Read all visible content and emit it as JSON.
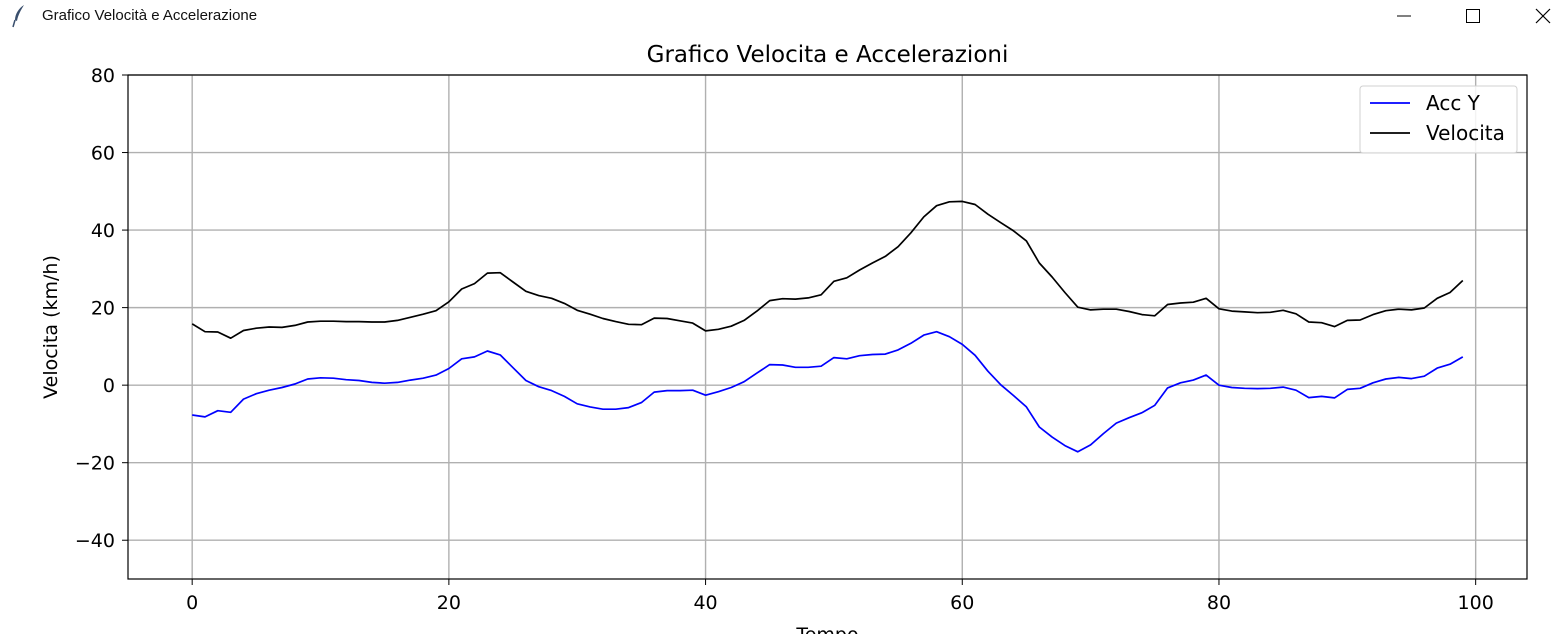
{
  "window": {
    "title": "Grafico Velocità e Accelerazione",
    "icon": "feather-icon",
    "controls": [
      "minimize-icon",
      "maximize-icon",
      "close-icon"
    ]
  },
  "chart_data": {
    "type": "line",
    "title": "Grafico Velocita e Accelerazioni",
    "xlabel": "Tempo",
    "ylabel": "Velocita (km/h)",
    "xlim": [
      -5,
      104
    ],
    "ylim": [
      -50,
      80
    ],
    "xticks": [
      0,
      20,
      40,
      60,
      80,
      100
    ],
    "yticks": [
      -40,
      -20,
      0,
      20,
      40,
      60,
      80
    ],
    "xtick_labels": [
      "0",
      "20",
      "40",
      "60",
      "80",
      "100"
    ],
    "ytick_labels": [
      "−40",
      "−20",
      "0",
      "20",
      "40",
      "60",
      "80"
    ],
    "grid": true,
    "legend_position": "top-right",
    "x": [
      0,
      1,
      2,
      3,
      4,
      5,
      6,
      7,
      8,
      9,
      10,
      11,
      12,
      13,
      14,
      15,
      16,
      17,
      18,
      19,
      20,
      21,
      22,
      23,
      24,
      25,
      26,
      27,
      28,
      29,
      30,
      31,
      32,
      33,
      34,
      35,
      36,
      37,
      38,
      39,
      40,
      41,
      42,
      43,
      44,
      45,
      46,
      47,
      48,
      49,
      50,
      51,
      52,
      53,
      54,
      55,
      56,
      57,
      58,
      59,
      60,
      61,
      62,
      63,
      64,
      65,
      66,
      67,
      68,
      69,
      70,
      71,
      72,
      73,
      74,
      75,
      76,
      77,
      78,
      79,
      80,
      81,
      82,
      83,
      84,
      85,
      86,
      87,
      88,
      89,
      90,
      91,
      92,
      93,
      94,
      95,
      96,
      97,
      98,
      99
    ],
    "series": [
      {
        "name": "Acc Y",
        "color": "#0000ff",
        "values": [
          -7.7,
          -8.2,
          -6.6,
          -7,
          -3.6,
          -2.2,
          -1.3,
          -0.6,
          0.3,
          1.6,
          1.9,
          1.8,
          1.4,
          1.2,
          0.7,
          0.5,
          0.7,
          1.3,
          1.8,
          2.6,
          4.3,
          6.8,
          7.3,
          8.8,
          7.8,
          4.5,
          1.2,
          -0.4,
          -1.4,
          -2.9,
          -4.8,
          -5.6,
          -6.2,
          -6.2,
          -5.8,
          -4.5,
          -1.8,
          -1.4,
          -1.4,
          -1.3,
          -2.6,
          -1.7,
          -0.6,
          0.9,
          3.1,
          5.3,
          5.2,
          4.6,
          4.6,
          4.9,
          7.1,
          6.8,
          7.6,
          7.9,
          8,
          9.1,
          10.8,
          12.9,
          13.8,
          12.5,
          10.5,
          7.7,
          3.6,
          0.1,
          -2.7,
          -5.6,
          -10.8,
          -13.4,
          -15.6,
          -17.2,
          -15.4,
          -12.5,
          -9.8,
          -8.4,
          -7.1,
          -5.2,
          -0.7,
          0.6,
          1.3,
          2.6,
          0,
          -0.6,
          -0.8,
          -0.9,
          -0.8,
          -0.5,
          -1.3,
          -3.2,
          -2.9,
          -3.3,
          -1.1,
          -0.8,
          0.6,
          1.6,
          2,
          1.7,
          2.3,
          4.4,
          5.4,
          7.3
        ]
      },
      {
        "name": "Velocita",
        "color": "#000000",
        "values": [
          15.8,
          13.8,
          13.7,
          12.1,
          14.1,
          14.7,
          15,
          14.9,
          15.4,
          16.3,
          16.5,
          16.5,
          16.4,
          16.4,
          16.3,
          16.3,
          16.7,
          17.5,
          18.3,
          19.2,
          21.5,
          24.8,
          26.2,
          28.9,
          29,
          26.6,
          24.2,
          23.1,
          22.4,
          21.1,
          19.3,
          18.3,
          17.2,
          16.4,
          15.7,
          15.6,
          17.3,
          17.2,
          16.6,
          16,
          14,
          14.4,
          15.2,
          16.7,
          19.1,
          21.8,
          22.3,
          22.2,
          22.5,
          23.3,
          26.8,
          27.7,
          29.7,
          31.5,
          33.2,
          35.7,
          39.3,
          43.4,
          46.3,
          47.3,
          47.4,
          46.6,
          44.1,
          41.9,
          39.8,
          37.2,
          31.5,
          27.9,
          23.9,
          20.1,
          19.4,
          19.6,
          19.6,
          19,
          18.2,
          17.9,
          20.8,
          21.2,
          21.4,
          22.4,
          19.7,
          19.1,
          18.9,
          18.7,
          18.8,
          19.3,
          18.4,
          16.3,
          16.1,
          15.1,
          16.7,
          16.8,
          18.2,
          19.2,
          19.6,
          19.4,
          19.9,
          22.4,
          23.9,
          27
        ]
      }
    ]
  }
}
